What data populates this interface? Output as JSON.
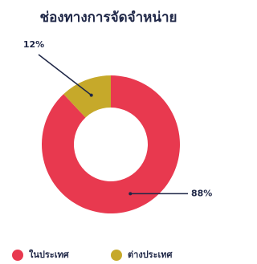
{
  "chart_data": {
    "type": "pie",
    "title": "ช่องทางการจัดจำหน่าย",
    "categories": [
      "ในประเทศ",
      "ต่างประเทศ"
    ],
    "values": [
      88,
      12
    ],
    "value_labels": [
      "88%",
      "12%"
    ],
    "colors": [
      "#e8394f",
      "#c6a92a"
    ],
    "donut": true
  }
}
